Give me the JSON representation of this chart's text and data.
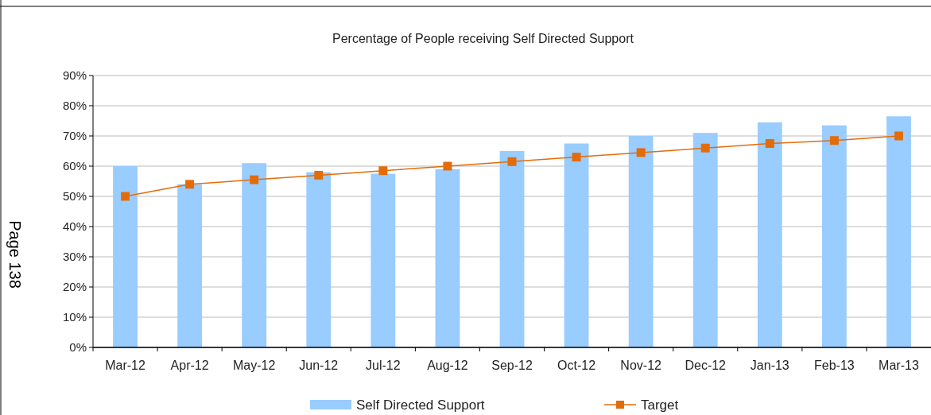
{
  "chart_data": {
    "type": "bar",
    "title": "Percentage of People receiving Self Directed Support",
    "categories": [
      "Mar-12",
      "Apr-12",
      "May-12",
      "Jun-12",
      "Jul-12",
      "Aug-12",
      "Sep-12",
      "Oct-12",
      "Nov-12",
      "Dec-12",
      "Jan-13",
      "Feb-13",
      "Mar-13"
    ],
    "series": [
      {
        "name": "Self Directed Support",
        "color": "#99ccff",
        "values": [
          60,
          54,
          61,
          58,
          57.5,
          59,
          65,
          67.5,
          70,
          71,
          74.5,
          73.5,
          76.5
        ]
      },
      {
        "name": "Target",
        "type": "line",
        "color": "#e36c09",
        "marker": "square",
        "values": [
          50,
          54,
          55.5,
          57,
          58.5,
          60,
          61.5,
          63,
          64.5,
          66,
          67.5,
          68.5,
          70
        ]
      }
    ],
    "ylim": [
      0,
      90
    ],
    "yticks": [
      {
        "value": 0,
        "label": "0%"
      },
      {
        "value": 10,
        "label": "10%"
      },
      {
        "value": 20,
        "label": "20%"
      },
      {
        "value": 30,
        "label": "30%"
      },
      {
        "value": 40,
        "label": "40%"
      },
      {
        "value": 50,
        "label": "50%"
      },
      {
        "value": 60,
        "label": "60%"
      },
      {
        "value": 70,
        "label": "70%"
      },
      {
        "value": 80,
        "label": "80%"
      },
      {
        "value": 90,
        "label": "90%"
      }
    ],
    "grid": "y",
    "legend": "bottom",
    "annotations": [
      "Page 138"
    ]
  }
}
